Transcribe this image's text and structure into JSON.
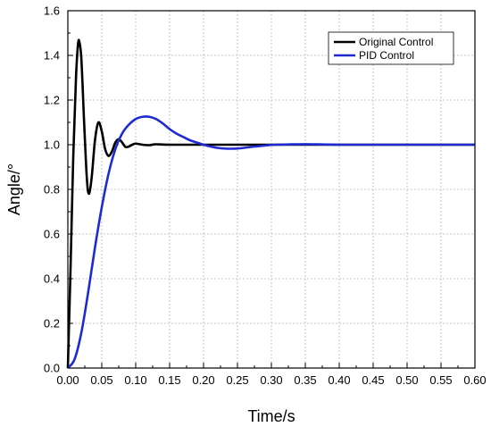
{
  "chart_data": {
    "type": "line",
    "title": "",
    "xlabel": "Time/s",
    "ylabel": "Angle/°",
    "xlim": [
      0,
      0.6
    ],
    "ylim": [
      0,
      1.6
    ],
    "x_ticks": [
      "0.00",
      "0.05",
      "0.10",
      "0.15",
      "0.20",
      "0.25",
      "0.30",
      "0.35",
      "0.40",
      "0.45",
      "0.50",
      "0.55",
      "0.60"
    ],
    "y_ticks": [
      "0.0",
      "0.2",
      "0.4",
      "0.6",
      "0.8",
      "1.0",
      "1.2",
      "1.4",
      "1.6"
    ],
    "grid": true,
    "legend_position": "top-right",
    "series": [
      {
        "name": "Original Control",
        "color": "#000000",
        "points": [
          [
            0.0,
            0.0
          ],
          [
            0.004,
            0.45
          ],
          [
            0.008,
            0.95
          ],
          [
            0.012,
            1.3
          ],
          [
            0.015,
            1.45
          ],
          [
            0.017,
            1.46
          ],
          [
            0.02,
            1.38
          ],
          [
            0.024,
            1.1
          ],
          [
            0.028,
            0.85
          ],
          [
            0.031,
            0.78
          ],
          [
            0.035,
            0.85
          ],
          [
            0.04,
            1.02
          ],
          [
            0.045,
            1.1
          ],
          [
            0.05,
            1.06
          ],
          [
            0.055,
            0.98
          ],
          [
            0.06,
            0.95
          ],
          [
            0.065,
            0.97
          ],
          [
            0.07,
            1.01
          ],
          [
            0.075,
            1.025
          ],
          [
            0.08,
            1.01
          ],
          [
            0.085,
            0.99
          ],
          [
            0.09,
            0.992
          ],
          [
            0.095,
            1.0
          ],
          [
            0.1,
            1.005
          ],
          [
            0.11,
            1.0
          ],
          [
            0.12,
            0.998
          ],
          [
            0.13,
            1.002
          ],
          [
            0.15,
            1.0
          ],
          [
            0.2,
            1.0
          ],
          [
            0.3,
            1.0
          ],
          [
            0.4,
            1.0
          ],
          [
            0.5,
            1.0
          ],
          [
            0.6,
            1.0
          ]
        ]
      },
      {
        "name": "PID Control",
        "color": "#1f2bd0",
        "points": [
          [
            0.0,
            0.0
          ],
          [
            0.01,
            0.04
          ],
          [
            0.02,
            0.16
          ],
          [
            0.03,
            0.34
          ],
          [
            0.04,
            0.54
          ],
          [
            0.05,
            0.72
          ],
          [
            0.06,
            0.87
          ],
          [
            0.07,
            0.98
          ],
          [
            0.08,
            1.05
          ],
          [
            0.09,
            1.09
          ],
          [
            0.1,
            1.115
          ],
          [
            0.11,
            1.125
          ],
          [
            0.12,
            1.125
          ],
          [
            0.13,
            1.115
          ],
          [
            0.14,
            1.095
          ],
          [
            0.15,
            1.07
          ],
          [
            0.16,
            1.05
          ],
          [
            0.17,
            1.035
          ],
          [
            0.18,
            1.02
          ],
          [
            0.19,
            1.01
          ],
          [
            0.2,
            1.0
          ],
          [
            0.21,
            0.992
          ],
          [
            0.22,
            0.986
          ],
          [
            0.23,
            0.983
          ],
          [
            0.24,
            0.982
          ],
          [
            0.25,
            0.983
          ],
          [
            0.26,
            0.986
          ],
          [
            0.27,
            0.99
          ],
          [
            0.28,
            0.993
          ],
          [
            0.29,
            0.996
          ],
          [
            0.3,
            0.999
          ],
          [
            0.32,
            1.001
          ],
          [
            0.34,
            1.002
          ],
          [
            0.36,
            1.002
          ],
          [
            0.38,
            1.001
          ],
          [
            0.4,
            1.0
          ],
          [
            0.45,
            1.0
          ],
          [
            0.5,
            1.0
          ],
          [
            0.55,
            1.0
          ],
          [
            0.6,
            1.0
          ]
        ]
      }
    ]
  }
}
